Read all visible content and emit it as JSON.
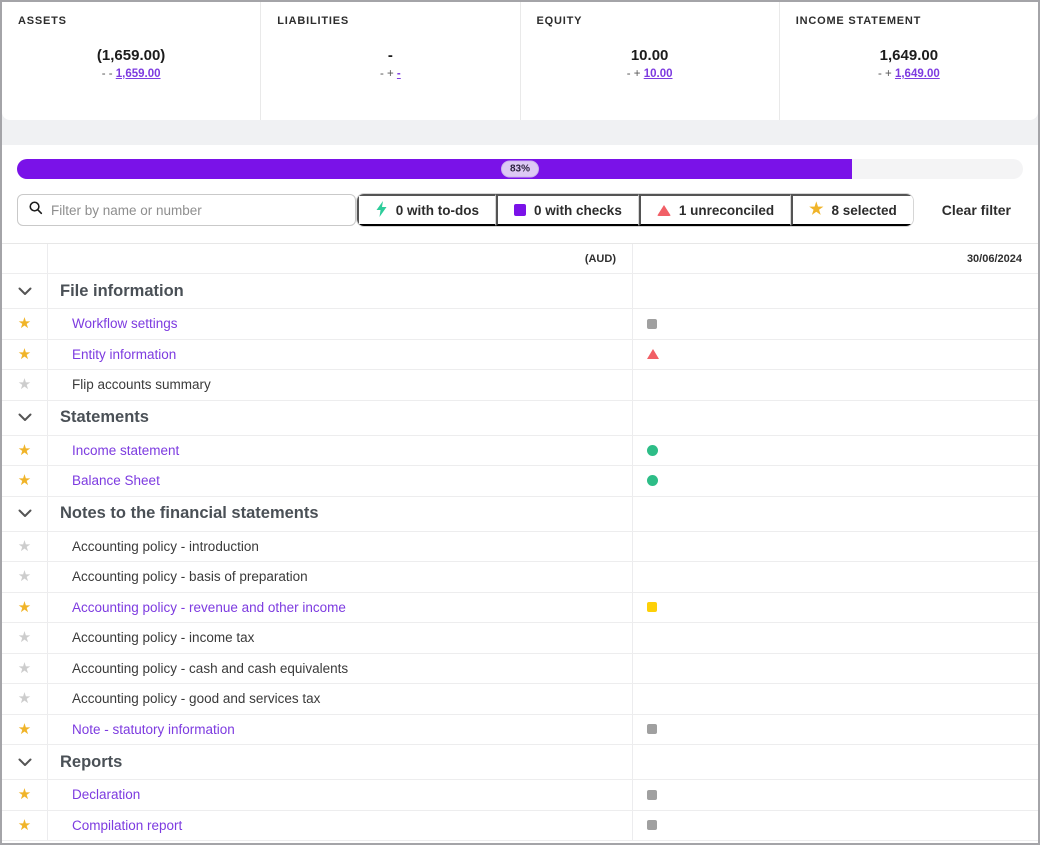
{
  "colors": {
    "accent_purple": "#7a12e8",
    "link_purple": "#7d3be0",
    "star_yellow": "#f0b429",
    "star_gray": "#cdcdcd",
    "todo_green": "#2dcc9a",
    "status": {
      "gray-square": "#a0a0a0",
      "red-triangle": "#f15f66",
      "green-circle": "#2dbd87",
      "yellow-square": "#fdd008"
    }
  },
  "summary_cards": [
    {
      "label": "ASSETS",
      "value": "(1,659.00)",
      "breakdown_prefix": "- -",
      "breakdown_link": "1,659.00"
    },
    {
      "label": "LIABILITIES",
      "value": "-",
      "breakdown_prefix": "- +",
      "breakdown_link": "-"
    },
    {
      "label": "EQUITY",
      "value": "10.00",
      "breakdown_prefix": "- +",
      "breakdown_link": "10.00"
    },
    {
      "label": "INCOME STATEMENT",
      "value": "1,649.00",
      "breakdown_prefix": "- +",
      "breakdown_link": "1,649.00"
    }
  ],
  "progress": {
    "percent": 83,
    "label": "83%"
  },
  "filter": {
    "search_placeholder": "Filter by name or number",
    "buttons": [
      {
        "id": "todos",
        "icon": "lightning",
        "color": "#2dcc9a",
        "label": "0 with to-dos"
      },
      {
        "id": "checks",
        "icon": "square",
        "color": "#7a12e8",
        "label": "0 with checks"
      },
      {
        "id": "unreconciled",
        "icon": "triangle",
        "color": "#f15f66",
        "label": "1 unreconciled"
      },
      {
        "id": "selected",
        "icon": "star",
        "color": "#f0b429",
        "label": "8 selected"
      }
    ],
    "clear_label": "Clear filter"
  },
  "table": {
    "currency_header": "(AUD)",
    "date_header": "30/06/2024",
    "sections": [
      {
        "title": "File information",
        "rows": [
          {
            "name": "Workflow settings",
            "starred": true,
            "link": true,
            "status": "gray-square"
          },
          {
            "name": "Entity information",
            "starred": true,
            "link": true,
            "status": "red-triangle"
          },
          {
            "name": "Flip accounts summary",
            "starred": false,
            "link": false,
            "status": null
          }
        ]
      },
      {
        "title": "Statements",
        "rows": [
          {
            "name": "Income statement",
            "starred": true,
            "link": true,
            "status": "green-circle"
          },
          {
            "name": "Balance Sheet",
            "starred": true,
            "link": true,
            "status": "green-circle"
          }
        ]
      },
      {
        "title": "Notes to the financial statements",
        "rows": [
          {
            "name": "Accounting policy - introduction",
            "starred": false,
            "link": false,
            "status": null
          },
          {
            "name": "Accounting policy - basis of preparation",
            "starred": false,
            "link": false,
            "status": null
          },
          {
            "name": "Accounting policy - revenue and other income",
            "starred": true,
            "link": true,
            "status": "yellow-square"
          },
          {
            "name": "Accounting policy - income tax",
            "starred": false,
            "link": false,
            "status": null
          },
          {
            "name": "Accounting policy - cash and cash equivalents",
            "starred": false,
            "link": false,
            "status": null
          },
          {
            "name": "Accounting policy - good and services tax",
            "starred": false,
            "link": false,
            "status": null
          },
          {
            "name": "Note - statutory information",
            "starred": true,
            "link": true,
            "status": "gray-square"
          }
        ]
      },
      {
        "title": "Reports",
        "rows": [
          {
            "name": "Declaration",
            "starred": true,
            "link": true,
            "status": "gray-square"
          },
          {
            "name": "Compilation report",
            "starred": true,
            "link": true,
            "status": "gray-square"
          }
        ]
      }
    ]
  }
}
